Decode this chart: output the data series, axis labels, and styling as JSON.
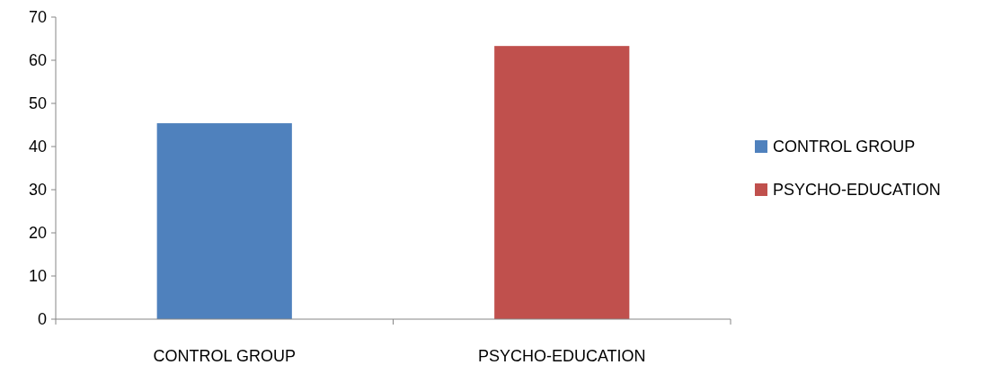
{
  "chart_data": {
    "type": "bar",
    "categories": [
      "CONTROL GROUP",
      "PSYCHO-EDUCATION"
    ],
    "series": [
      {
        "name": "CONTROL GROUP",
        "color": "#4f81bd",
        "values": [
          45.4,
          null
        ]
      },
      {
        "name": "PSYCHO-EDUCATION",
        "color": "#c0504d",
        "values": [
          null,
          63.3
        ]
      }
    ],
    "ylim": [
      0,
      70
    ],
    "yticks": [
      0,
      10,
      20,
      30,
      40,
      50,
      60,
      70
    ],
    "grid": false,
    "legend": "right"
  }
}
